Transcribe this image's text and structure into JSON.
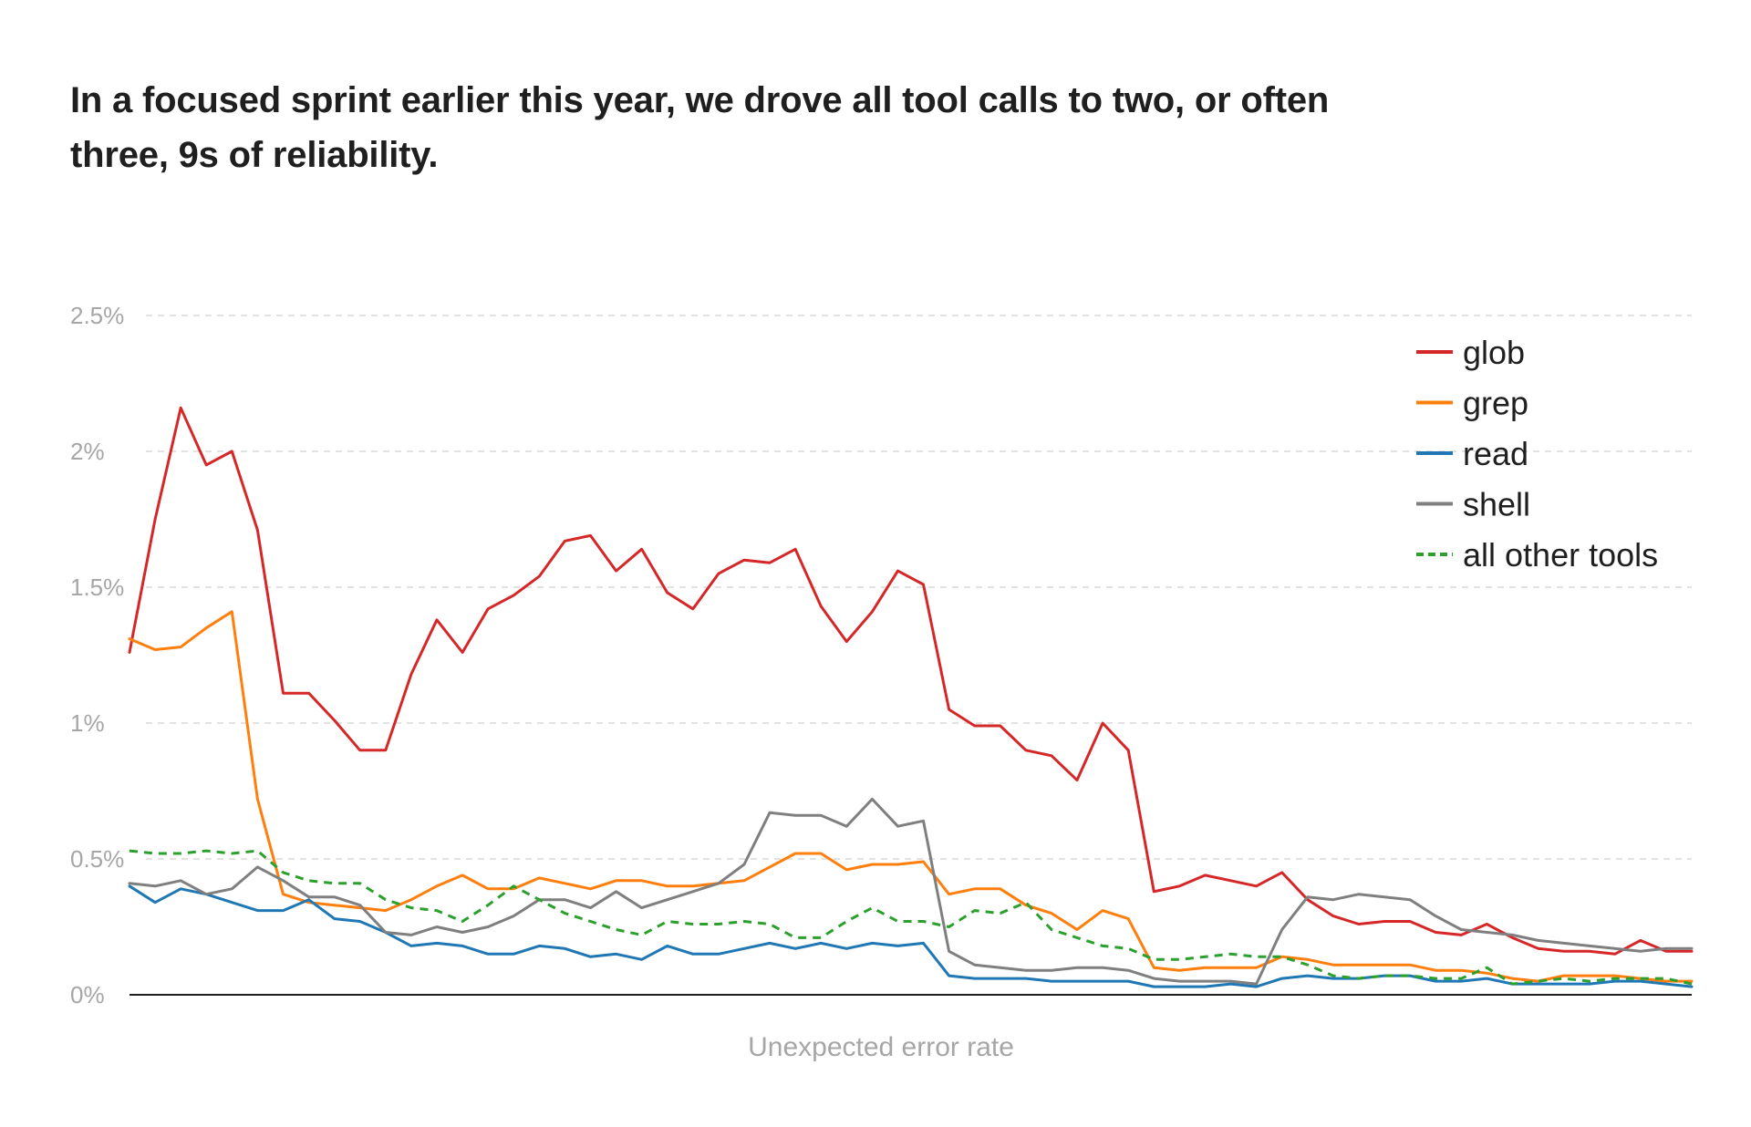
{
  "chart_data": {
    "type": "line",
    "title": "In a focused sprint earlier this year, we drove all tool calls to two, or often three, 9s of reliability.",
    "xlabel": "Unexpected error rate",
    "ylabel": "",
    "ylim": [
      0,
      2.5
    ],
    "yticks": [
      {
        "value": 0,
        "label": "0%"
      },
      {
        "value": 0.5,
        "label": "0.5%"
      },
      {
        "value": 1,
        "label": "1%"
      },
      {
        "value": 1.5,
        "label": "1.5%"
      },
      {
        "value": 2,
        "label": "2%"
      },
      {
        "value": 2.5,
        "label": "2.5%"
      }
    ],
    "grid": true,
    "legend_position": "top-right",
    "series": [
      {
        "name": "glob",
        "color": "#d62728",
        "dashed": false,
        "values": [
          1.26,
          1.75,
          2.16,
          1.95,
          2.0,
          1.71,
          1.11,
          1.11,
          1.01,
          0.9,
          0.9,
          1.18,
          1.38,
          1.26,
          1.42,
          1.47,
          1.54,
          1.67,
          1.69,
          1.56,
          1.64,
          1.48,
          1.42,
          1.55,
          1.6,
          1.59,
          1.64,
          1.43,
          1.3,
          1.41,
          1.56,
          1.51,
          1.05,
          0.99,
          0.99,
          0.9,
          0.88,
          0.79,
          1.0,
          0.9,
          0.38,
          0.4,
          0.44,
          0.42,
          0.4,
          0.45,
          0.35,
          0.29,
          0.26,
          0.27,
          0.27,
          0.23,
          0.22,
          0.26,
          0.21,
          0.17,
          0.16,
          0.16,
          0.15,
          0.2,
          0.16,
          0.16
        ]
      },
      {
        "name": "grep",
        "color": "#ff7f0e",
        "dashed": false,
        "values": [
          1.31,
          1.27,
          1.28,
          1.35,
          1.41,
          0.72,
          0.37,
          0.34,
          0.33,
          0.32,
          0.31,
          0.35,
          0.4,
          0.44,
          0.39,
          0.39,
          0.43,
          0.41,
          0.39,
          0.42,
          0.42,
          0.4,
          0.4,
          0.41,
          0.42,
          0.47,
          0.52,
          0.52,
          0.46,
          0.48,
          0.48,
          0.49,
          0.37,
          0.39,
          0.39,
          0.33,
          0.3,
          0.24,
          0.31,
          0.28,
          0.1,
          0.09,
          0.1,
          0.1,
          0.1,
          0.14,
          0.13,
          0.11,
          0.11,
          0.11,
          0.11,
          0.09,
          0.09,
          0.08,
          0.06,
          0.05,
          0.07,
          0.07,
          0.07,
          0.06,
          0.05,
          0.05
        ]
      },
      {
        "name": "read",
        "color": "#1f77b4",
        "dashed": false,
        "values": [
          0.4,
          0.34,
          0.39,
          0.37,
          0.34,
          0.31,
          0.31,
          0.35,
          0.28,
          0.27,
          0.23,
          0.18,
          0.19,
          0.18,
          0.15,
          0.15,
          0.18,
          0.17,
          0.14,
          0.15,
          0.13,
          0.18,
          0.15,
          0.15,
          0.17,
          0.19,
          0.17,
          0.19,
          0.17,
          0.19,
          0.18,
          0.19,
          0.07,
          0.06,
          0.06,
          0.06,
          0.05,
          0.05,
          0.05,
          0.05,
          0.03,
          0.03,
          0.03,
          0.04,
          0.03,
          0.06,
          0.07,
          0.06,
          0.06,
          0.07,
          0.07,
          0.05,
          0.05,
          0.06,
          0.04,
          0.04,
          0.04,
          0.04,
          0.05,
          0.05,
          0.04,
          0.03
        ]
      },
      {
        "name": "shell",
        "color": "#7f7f7f",
        "dashed": false,
        "values": [
          0.41,
          0.4,
          0.42,
          0.37,
          0.39,
          0.47,
          0.42,
          0.36,
          0.36,
          0.33,
          0.23,
          0.22,
          0.25,
          0.23,
          0.25,
          0.29,
          0.35,
          0.35,
          0.32,
          0.38,
          0.32,
          0.35,
          0.38,
          0.41,
          0.48,
          0.67,
          0.66,
          0.66,
          0.62,
          0.72,
          0.62,
          0.64,
          0.16,
          0.11,
          0.1,
          0.09,
          0.09,
          0.1,
          0.1,
          0.09,
          0.06,
          0.05,
          0.05,
          0.05,
          0.04,
          0.24,
          0.36,
          0.35,
          0.37,
          0.36,
          0.35,
          0.29,
          0.24,
          0.23,
          0.22,
          0.2,
          0.19,
          0.18,
          0.17,
          0.16,
          0.17,
          0.17
        ]
      },
      {
        "name": "all other tools",
        "color": "#2ca02c",
        "dashed": true,
        "values": [
          0.53,
          0.52,
          0.52,
          0.53,
          0.52,
          0.53,
          0.45,
          0.42,
          0.41,
          0.41,
          0.35,
          0.32,
          0.31,
          0.27,
          0.33,
          0.4,
          0.35,
          0.3,
          0.27,
          0.24,
          0.22,
          0.27,
          0.26,
          0.26,
          0.27,
          0.26,
          0.21,
          0.21,
          0.27,
          0.32,
          0.27,
          0.27,
          0.25,
          0.31,
          0.3,
          0.34,
          0.24,
          0.21,
          0.18,
          0.17,
          0.13,
          0.13,
          0.14,
          0.15,
          0.14,
          0.14,
          0.11,
          0.07,
          0.06,
          0.07,
          0.07,
          0.06,
          0.06,
          0.1,
          0.04,
          0.05,
          0.06,
          0.05,
          0.06,
          0.06,
          0.06,
          0.04
        ]
      }
    ]
  }
}
